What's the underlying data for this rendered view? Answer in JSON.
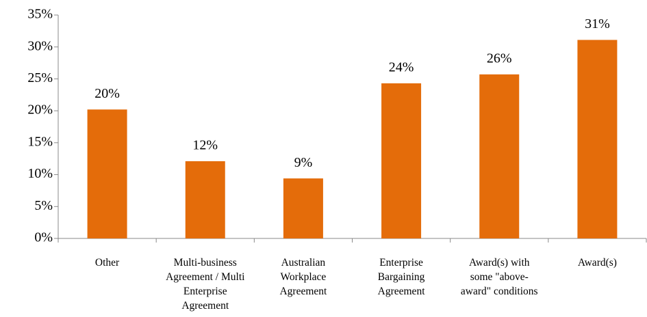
{
  "chart_data": {
    "type": "bar",
    "categories": [
      "Other",
      "Multi-business Agreement / Multi Enterprise Agreement",
      "Australian Workplace Agreement",
      "Enterprise Bargaining Agreement",
      "Award(s) with some \"above-award\" conditions",
      "Award(s)"
    ],
    "values": [
      20.2,
      12.1,
      9.4,
      24.3,
      25.7,
      31.1
    ],
    "value_labels": [
      "20%",
      "12%",
      "9%",
      "24%",
      "26%",
      "31%"
    ],
    "color": "#e46c0a",
    "ylim": [
      0,
      35
    ],
    "yticks": [
      {
        "value": 0,
        "label": "0%"
      },
      {
        "value": 5,
        "label": "5%"
      },
      {
        "value": 10,
        "label": "10%"
      },
      {
        "value": 15,
        "label": "15%"
      },
      {
        "value": 20,
        "label": "20%"
      },
      {
        "value": 25,
        "label": "25%"
      },
      {
        "value": 30,
        "label": "30%"
      },
      {
        "value": 35,
        "label": "35%"
      }
    ],
    "grid": false
  }
}
